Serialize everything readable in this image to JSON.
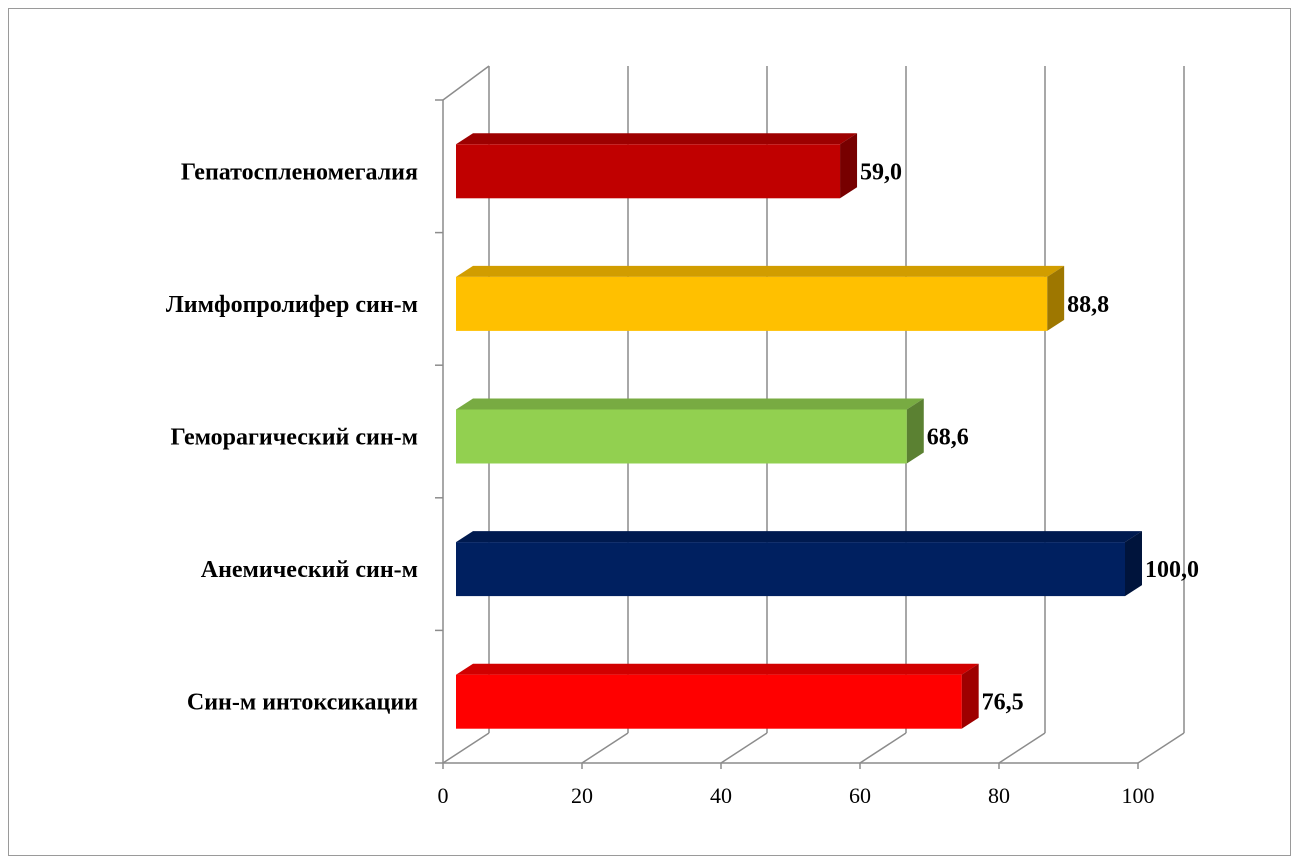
{
  "chart_data": {
    "type": "bar",
    "orientation": "horizontal",
    "style": "3d",
    "categories": [
      "Гепатоспленомегалия",
      "Лимфопролифер син-м",
      "Геморагический син-м",
      "Анемический син-м",
      "Син-м интоксикации"
    ],
    "values": [
      59.0,
      88.8,
      68.6,
      100.0,
      76.5
    ],
    "value_labels": [
      "59,0",
      "88,8",
      "68,6",
      "100,0",
      "76,5"
    ],
    "bar_colors": [
      "#C00000",
      "#FFC000",
      "#92D050",
      "#002060",
      "#FF0000"
    ],
    "xlim": [
      0,
      100
    ],
    "x_ticks": [
      0,
      20,
      40,
      60,
      80,
      100
    ],
    "x_tick_labels": [
      "0",
      "20",
      "40",
      "60",
      "80",
      "100"
    ],
    "grid": true,
    "legend": "none"
  }
}
